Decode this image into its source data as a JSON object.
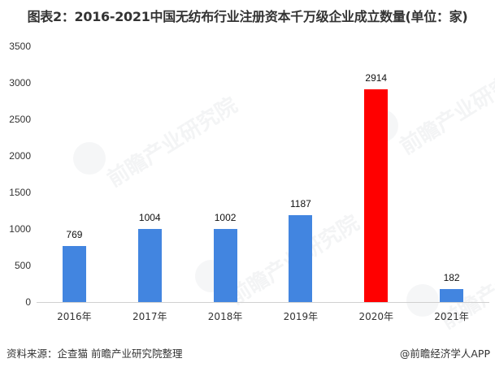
{
  "chart_data": {
    "type": "bar",
    "title": "图表2：2016-2021中国无纺布行业注册资本千万级企业成立数量(单位：家)",
    "xlabel": "",
    "ylabel": "",
    "categories": [
      "2016年",
      "2017年",
      "2018年",
      "2019年",
      "2020年",
      "2021年"
    ],
    "values": [
      769,
      1004,
      1002,
      1187,
      2914,
      182
    ],
    "value_labels": [
      "769",
      "1004",
      "1002",
      "1187",
      "2914",
      "182"
    ],
    "bar_colors": [
      "#4285E0",
      "#4285E0",
      "#4285E0",
      "#4285E0",
      "#FF0000",
      "#4285E0"
    ],
    "highlight_category": "2020年",
    "ylim": [
      0,
      3500
    ],
    "yticks": [
      "0",
      "500",
      "1000",
      "1500",
      "2000",
      "2500",
      "3000",
      "3500"
    ],
    "grid": false,
    "legend": null
  },
  "footer": {
    "source": "资料来源：企查猫 前瞻产业研究院整理",
    "credit": "@前瞻经济学人APP"
  },
  "watermark": {
    "text": "前瞻产业研究院"
  }
}
